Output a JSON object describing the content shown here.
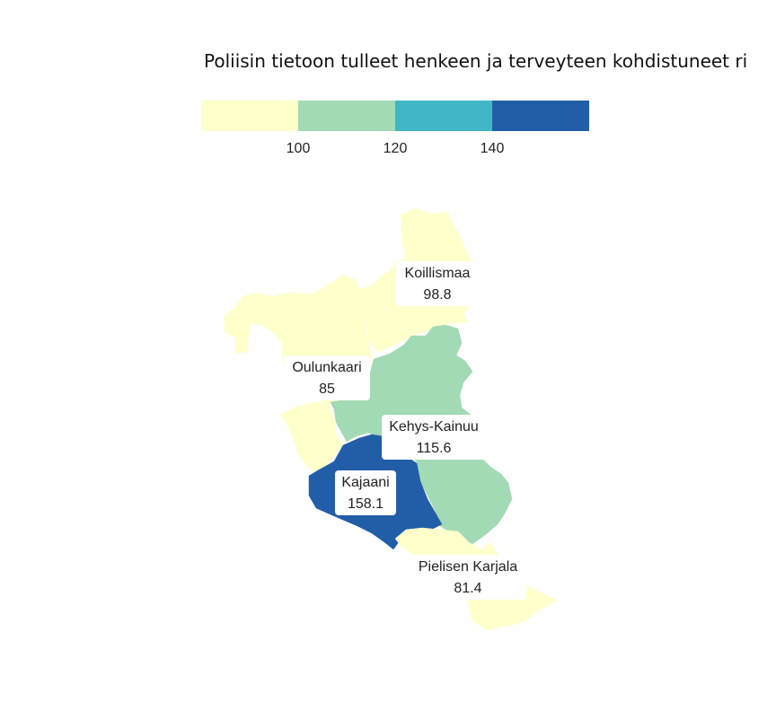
{
  "title": "Poliisin tietoon tulleet henkeen ja terveyteen kohdistuneet ri",
  "legend": {
    "ticks": [
      "100",
      "120",
      "140"
    ],
    "bins": [
      {
        "range": "<100",
        "color": "#ffffcc"
      },
      {
        "range": "100-120",
        "color": "#a1dab4"
      },
      {
        "range": "120-140",
        "color": "#41b6c4"
      },
      {
        "range": ">=140",
        "color": "#225ea8"
      }
    ]
  },
  "regions": [
    {
      "name": "Koillismaa",
      "value": "98.8",
      "color": "#ffffcc"
    },
    {
      "name": "Oulunkaari",
      "value": "85",
      "color": "#ffffcc"
    },
    {
      "name": "Kehys-Kainuu",
      "value": "115.6",
      "color": "#a1dab4"
    },
    {
      "name": "Kajaani",
      "value": "158.1",
      "color": "#225ea8"
    },
    {
      "name": "Pielisen Karjala",
      "value": "81.4",
      "color": "#ffffcc"
    }
  ]
}
